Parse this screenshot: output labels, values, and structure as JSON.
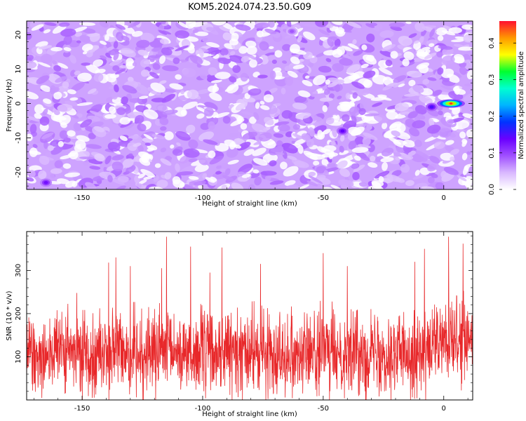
{
  "title": "KOM5.2024.074.23.50.G09",
  "colors": {
    "snr_line": "#e8282a",
    "frame": "#000000",
    "colormap": [
      "#ffffff",
      "#d9b8ff",
      "#a050ff",
      "#6a00ff",
      "#0033ff",
      "#00b4ff",
      "#00ffd0",
      "#00ff30",
      "#ffff00",
      "#ff9800",
      "#ff1030"
    ]
  },
  "chart_data": [
    {
      "type": "heatmap",
      "xlabel": "Height of straight line (km)",
      "ylabel": "Frequency (Hz)",
      "xlim": [
        -173,
        12
      ],
      "ylim": [
        -25,
        24
      ],
      "xticks": [
        -150,
        -100,
        -50,
        0
      ],
      "xtick_labels": [
        "-150",
        "-100",
        "-50",
        "0"
      ],
      "yticks": [
        -20,
        -10,
        0,
        10,
        20
      ],
      "ytick_labels": [
        "-20",
        "-10",
        "0",
        "10",
        "20"
      ],
      "colorbar": {
        "label": "Normalized spectral amplitude",
        "range": [
          0,
          0.46
        ],
        "ticks": [
          0.0,
          0.1,
          0.2,
          0.3,
          0.4
        ],
        "tick_labels": [
          "0.0",
          "0.1",
          "0.2",
          "0.3",
          "0.4"
        ]
      },
      "peak": {
        "x": 3,
        "y": 0,
        "value": 0.45
      },
      "background_level": [
        0.0,
        0.09
      ],
      "secondary_blobs": [
        {
          "x": -5,
          "y": -1,
          "value": 0.15
        },
        {
          "x": -42,
          "y": -8,
          "value": 0.14
        },
        {
          "x": -165,
          "y": -23,
          "value": 0.13
        },
        {
          "x": -63,
          "y": 21,
          "value": 0.09
        }
      ],
      "grid": false
    },
    {
      "type": "line",
      "xlabel": "Height of straight line (km)",
      "ylabel": "SNR (10 * v/v)",
      "xlim": [
        -173,
        12
      ],
      "ylim": [
        0,
        390
      ],
      "xticks": [
        -150,
        -100,
        -50,
        0
      ],
      "xtick_labels": [
        "-150",
        "-100",
        "-50",
        "0"
      ],
      "yticks": [
        100,
        200,
        300
      ],
      "ytick_labels": [
        "100",
        "200",
        "300"
      ],
      "series": [
        {
          "color": "#e8282a",
          "mean": 110,
          "min": 0,
          "max": 378,
          "sample_step_km": 0.1,
          "peaks": [
            {
              "x": -115,
              "y": 378
            },
            {
              "x": 2,
              "y": 378
            },
            {
              "x": 8,
              "y": 362
            },
            {
              "x": -105,
              "y": 355
            },
            {
              "x": -92,
              "y": 353
            },
            {
              "x": -8,
              "y": 350
            },
            {
              "x": -50,
              "y": 340
            },
            {
              "x": -136,
              "y": 330
            },
            {
              "x": -139,
              "y": 318
            },
            {
              "x": -76,
              "y": 315
            },
            {
              "x": -12,
              "y": 320
            },
            {
              "x": -40,
              "y": 310
            },
            {
              "x": -130,
              "y": 310
            },
            {
              "x": -117,
              "y": 305
            },
            {
              "x": -97,
              "y": 295
            }
          ]
        }
      ],
      "grid": false
    }
  ]
}
